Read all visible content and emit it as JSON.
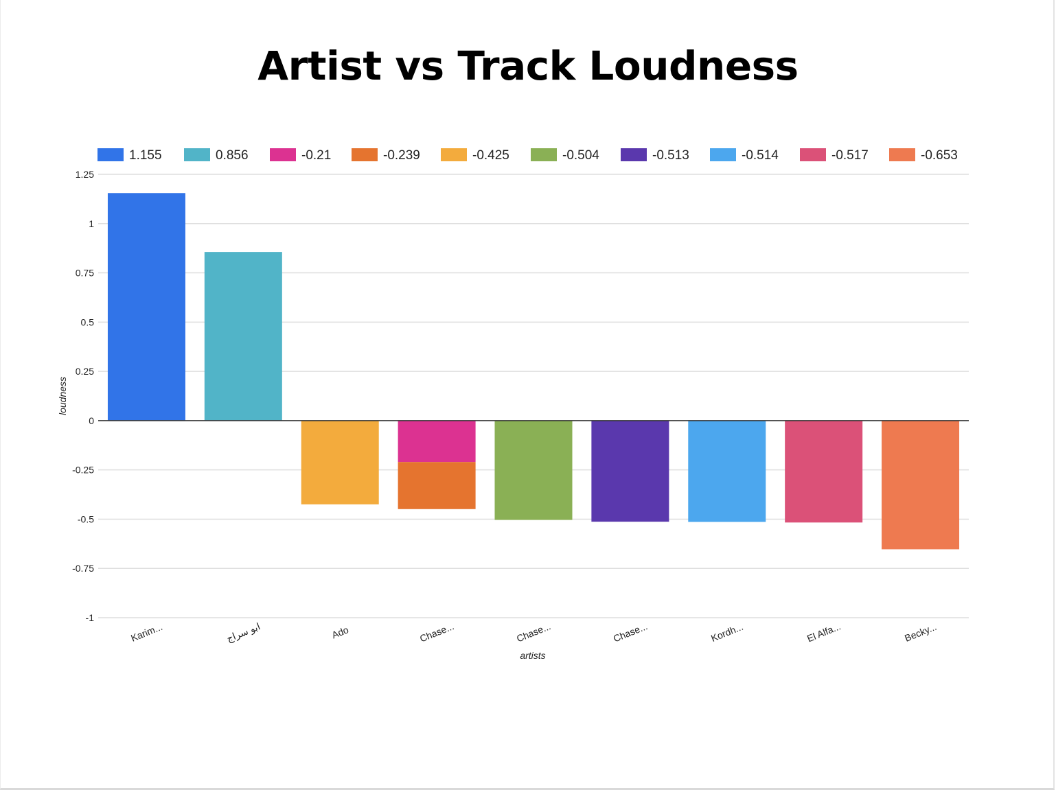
{
  "chart_data": {
    "type": "bar",
    "stacked": true,
    "title": "Artist vs Track Loudness",
    "xlabel": "artists",
    "ylabel": "loudness",
    "ylim": [
      -1,
      1.25
    ],
    "yticks": [
      "1.25",
      "1",
      "0.75",
      "0.5",
      "0.25",
      "0",
      "-0.25",
      "-0.5",
      "-0.75",
      "-1"
    ],
    "ytick_values": [
      1.25,
      1,
      0.75,
      0.5,
      0.25,
      0,
      -0.25,
      -0.5,
      -0.75,
      -1
    ],
    "grid": true,
    "legend_position": "top",
    "categories": [
      "Karim...",
      "ابو سراج",
      "Ado",
      "Chase...",
      "Chase...",
      "Chase...",
      "Kordh...",
      "El Alfa...",
      "Becky..."
    ],
    "series": [
      {
        "name": "1.155",
        "color": "#3174e8",
        "values": [
          1.155,
          null,
          null,
          null,
          null,
          null,
          null,
          null,
          null
        ]
      },
      {
        "name": "0.856",
        "color": "#51b4c8",
        "values": [
          null,
          0.856,
          null,
          null,
          null,
          null,
          null,
          null,
          null
        ]
      },
      {
        "name": "-0.21",
        "color": "#dc3291",
        "values": [
          null,
          null,
          null,
          -0.21,
          null,
          null,
          null,
          null,
          null
        ]
      },
      {
        "name": "-0.239",
        "color": "#e5742f",
        "values": [
          null,
          null,
          null,
          -0.239,
          null,
          null,
          null,
          null,
          null
        ]
      },
      {
        "name": "-0.425",
        "color": "#f3ab3d",
        "values": [
          null,
          null,
          -0.425,
          null,
          null,
          null,
          null,
          null,
          null
        ]
      },
      {
        "name": "-0.504",
        "color": "#8ab055",
        "values": [
          null,
          null,
          null,
          null,
          -0.504,
          null,
          null,
          null,
          null
        ]
      },
      {
        "name": "-0.513",
        "color": "#5a38ad",
        "values": [
          null,
          null,
          null,
          null,
          null,
          -0.513,
          null,
          null,
          null
        ]
      },
      {
        "name": "-0.514",
        "color": "#4ca7ee",
        "values": [
          null,
          null,
          null,
          null,
          null,
          null,
          -0.514,
          null,
          null
        ]
      },
      {
        "name": "-0.517",
        "color": "#db5178",
        "values": [
          null,
          null,
          null,
          null,
          null,
          null,
          null,
          -0.517,
          null
        ]
      },
      {
        "name": "-0.653",
        "color": "#ee7a50",
        "values": [
          null,
          null,
          null,
          null,
          null,
          null,
          null,
          null,
          -0.653
        ]
      }
    ]
  }
}
